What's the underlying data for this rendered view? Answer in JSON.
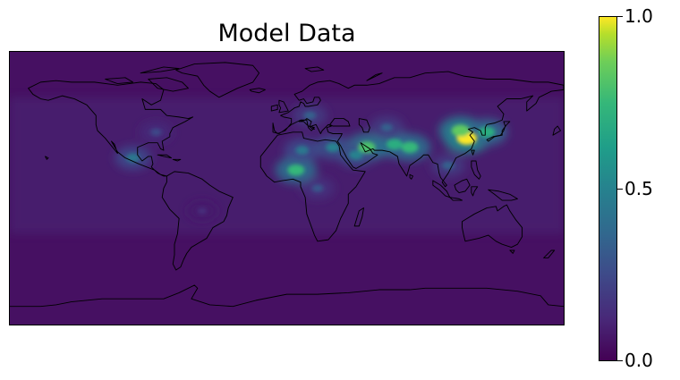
{
  "title": "Model Data",
  "colorbar": {
    "colormap": "viridis",
    "min": 0.0,
    "max": 1.0,
    "ticks": [
      {
        "value": 0.0,
        "label": "0.0"
      },
      {
        "value": 0.5,
        "label": "0.5"
      },
      {
        "value": 1.0,
        "label": "1.0"
      }
    ]
  },
  "map": {
    "projection": "plate-carree",
    "extent": {
      "lon": [
        -180,
        180
      ],
      "lat": [
        -90,
        90
      ]
    },
    "background_value": 0.05,
    "hotspots": [
      {
        "region": "east-china",
        "lon": 117,
        "lat": 33,
        "value": 1.0
      },
      {
        "region": "north-china",
        "lon": 113,
        "lat": 38,
        "value": 0.85
      },
      {
        "region": "korea-japan",
        "lon": 130,
        "lat": 37,
        "value": 0.7
      },
      {
        "region": "northern-india",
        "lon": 80,
        "lat": 27,
        "value": 0.75
      },
      {
        "region": "pakistan",
        "lon": 70,
        "lat": 29,
        "value": 0.7
      },
      {
        "region": "persian-gulf",
        "lon": 52,
        "lat": 27,
        "value": 0.8
      },
      {
        "region": "arabia",
        "lon": 45,
        "lat": 22,
        "value": 0.5
      },
      {
        "region": "west-africa-sahel",
        "lon": 6,
        "lat": 12,
        "value": 0.75
      },
      {
        "region": "sahara",
        "lon": 10,
        "lat": 25,
        "value": 0.45
      },
      {
        "region": "egypt",
        "lon": 30,
        "lat": 27,
        "value": 0.5
      },
      {
        "region": "mexico",
        "lon": -100,
        "lat": 20,
        "value": 0.45
      },
      {
        "region": "europe",
        "lon": 15,
        "lat": 48,
        "value": 0.35
      },
      {
        "region": "east-us",
        "lon": -85,
        "lat": 37,
        "value": 0.25
      },
      {
        "region": "southeast-asia",
        "lon": 105,
        "lat": 15,
        "value": 0.35
      },
      {
        "region": "central-asia",
        "lon": 65,
        "lat": 40,
        "value": 0.35
      },
      {
        "region": "south-america",
        "lon": -55,
        "lat": -15,
        "value": 0.15
      },
      {
        "region": "central-africa",
        "lon": 20,
        "lat": 0,
        "value": 0.3
      }
    ]
  }
}
